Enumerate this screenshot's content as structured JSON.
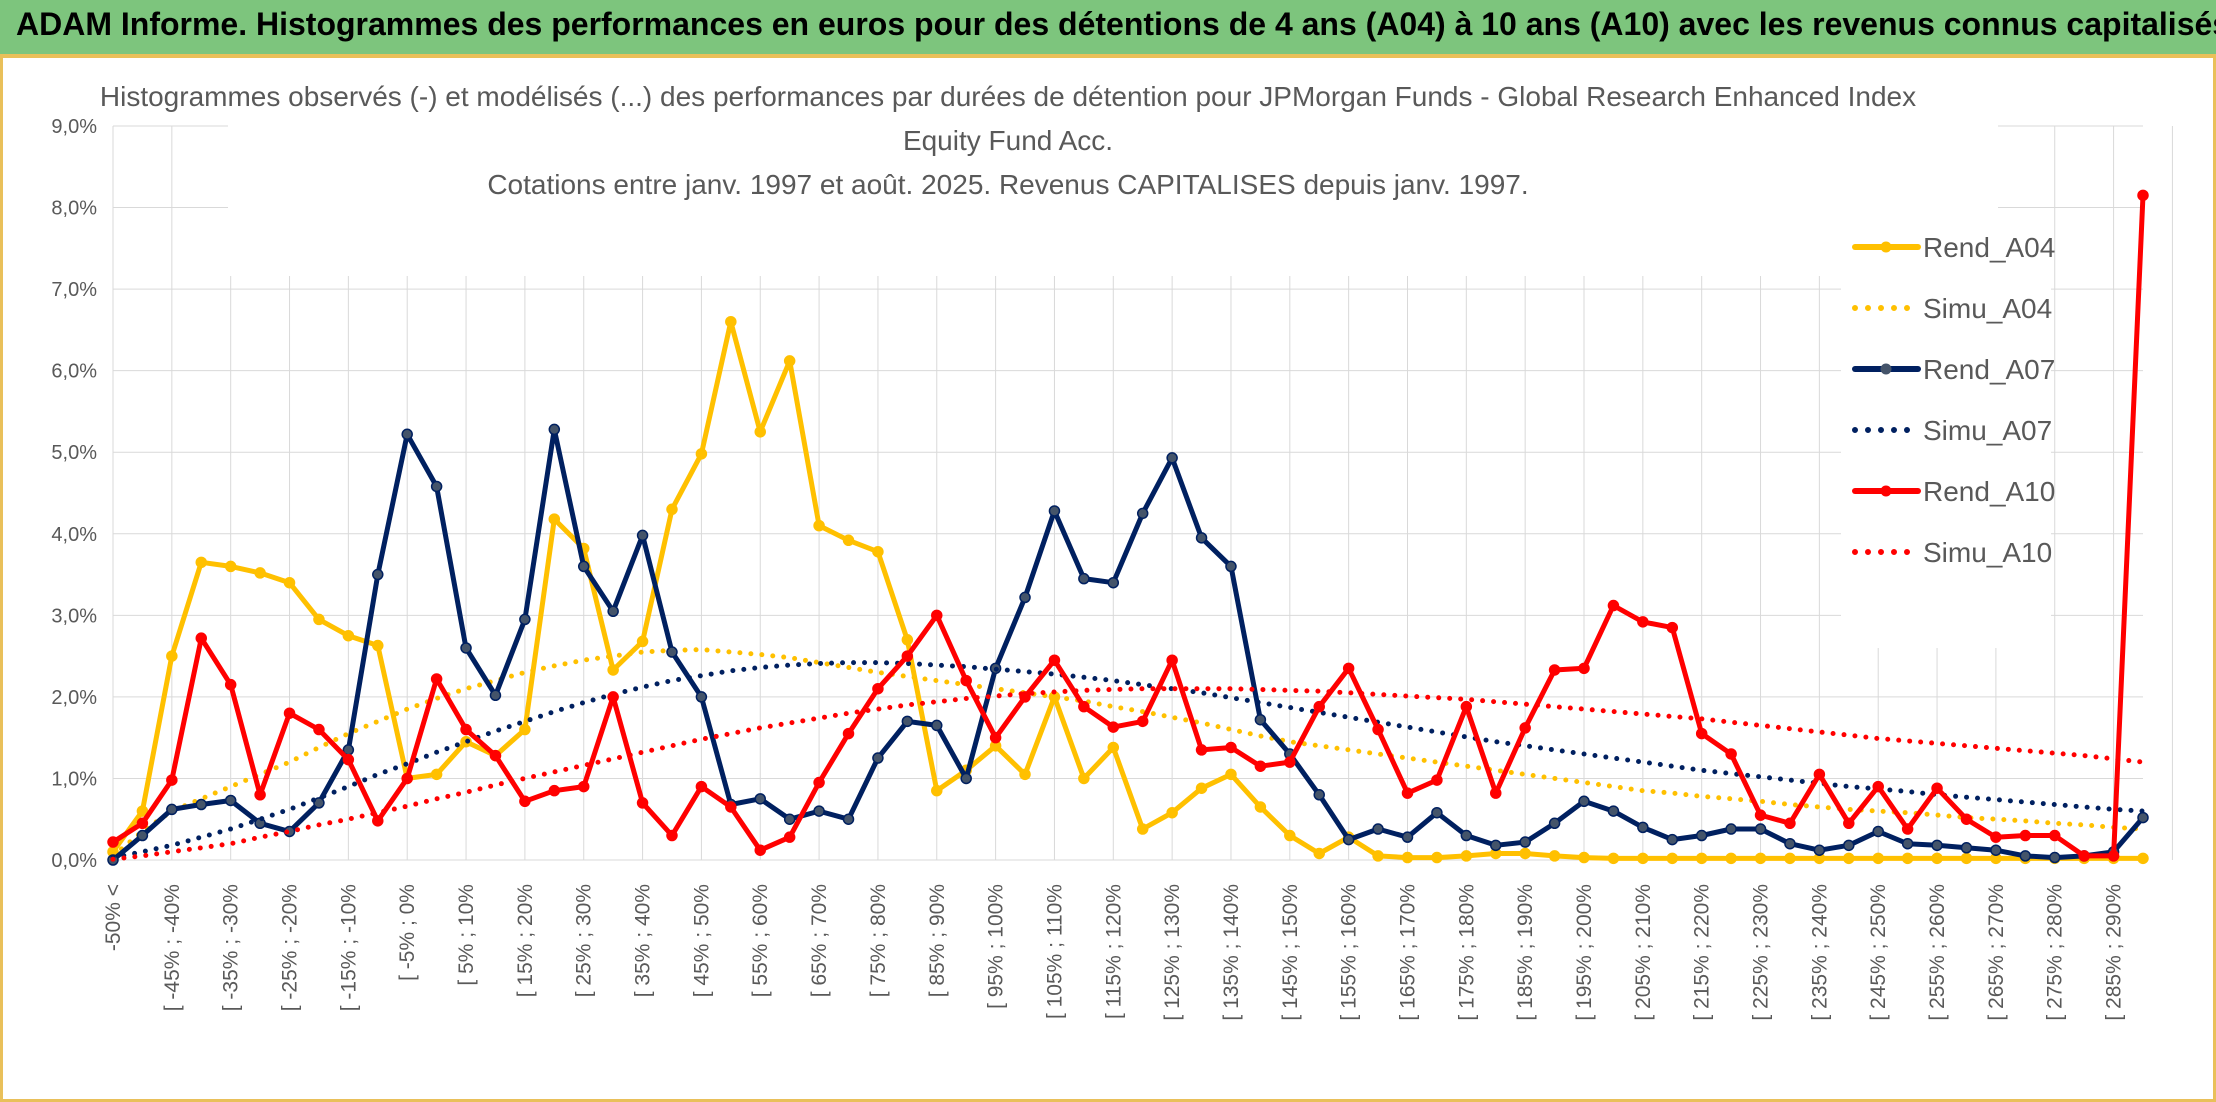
{
  "banner": {
    "title": "ADAM Informe. Histogrammes des performances en euros pour des détentions de 4 ans (A04) à 10 ans (A10) avec les revenus connus capitalisés"
  },
  "colors": {
    "banner_bg": "#7dc57d",
    "frame_border": "#e9c05a",
    "grid": "#d9d9d9",
    "text": "#595959"
  },
  "chart_data": {
    "type": "line",
    "title": [
      "Histogrammes observés (-) et modélisés (...) des performances par durées de détention pour JPMorgan Funds - Global Research Enhanced Index",
      "Equity Fund Acc.",
      "Cotations entre janv. 1997 et août. 2025. Revenus CAPITALISES depuis janv. 1997."
    ],
    "ylim": [
      0,
      9
    ],
    "y_ticks": [
      "0,0%",
      "1,0%",
      "2,0%",
      "3,0%",
      "4,0%",
      "5,0%",
      "6,0%",
      "7,0%",
      "8,0%",
      "9,0%"
    ],
    "grid": true,
    "legend_position": "right",
    "x_labels": [
      "-50% <",
      "[ -45% ; -40%",
      "[ -35% ; -30%",
      "[ -25% ; -20%",
      "[ -15% ; -10%",
      "[ -5% ; 0%",
      "[ 5% ; 10%",
      "[ 15% ; 20%",
      "[ 25% ; 30%",
      "[ 35% ; 40%",
      "[ 45% ; 50%",
      "[ 55% ; 60%",
      "[ 65% ; 70%",
      "[ 75% ; 80%",
      "[ 85% ; 90%",
      "[ 95% ; 100%",
      "[ 105% ; 110%",
      "[ 115% ; 120%",
      "[ 125% ; 130%",
      "[ 135% ; 140%",
      "[ 145% ; 150%",
      "[ 155% ; 160%",
      "[ 165% ; 170%",
      "[ 175% ; 180%",
      "[ 185% ; 190%",
      "[ 195% ; 200%",
      "[ 205% ; 210%",
      "[ 215% ; 220%",
      "[ 225% ; 230%",
      "[ 235% ; 240%",
      "[ 245% ; 250%",
      "[ 255% ; 260%",
      "[ 265% ; 270%",
      "[ 275% ; 280%",
      "[ 285% ; 290%"
    ],
    "n_categories": 70,
    "series": [
      {
        "name": "Rend_A04",
        "color": "#ffc000",
        "style": "solid",
        "markers": true,
        "values": [
          0.1,
          0.6,
          2.5,
          3.65,
          3.6,
          3.52,
          3.4,
          2.95,
          2.75,
          2.63,
          1.0,
          1.05,
          1.45,
          1.28,
          1.6,
          4.18,
          3.82,
          2.33,
          2.68,
          4.3,
          4.98,
          6.6,
          5.25,
          6.12,
          4.1,
          3.92,
          3.78,
          2.7,
          0.85,
          1.1,
          1.4,
          1.05,
          2.0,
          1.0,
          1.38,
          0.38,
          0.58,
          0.88,
          1.05,
          0.65,
          0.3,
          0.08,
          0.28,
          0.05,
          0.03,
          0.03,
          0.05,
          0.08,
          0.08,
          0.05,
          0.03,
          0.02,
          0.02,
          0.02,
          0.02,
          0.02,
          0.02,
          0.02,
          0.02,
          0.02,
          0.02,
          0.02,
          0.02,
          0.02,
          0.02,
          0.02,
          0.02,
          0.02,
          0.02,
          0.02
        ]
      },
      {
        "name": "Simu_A04",
        "color": "#ffc000",
        "style": "dotted",
        "markers": false,
        "values": [
          0.05,
          0.35,
          0.6,
          0.75,
          0.9,
          1.05,
          1.2,
          1.38,
          1.55,
          1.7,
          1.85,
          1.98,
          2.1,
          2.2,
          2.3,
          2.38,
          2.45,
          2.5,
          2.55,
          2.57,
          2.58,
          2.55,
          2.52,
          2.48,
          2.42,
          2.36,
          2.3,
          2.25,
          2.2,
          2.15,
          2.1,
          2.05,
          2.0,
          1.95,
          1.88,
          1.82,
          1.75,
          1.68,
          1.6,
          1.52,
          1.45,
          1.4,
          1.35,
          1.3,
          1.25,
          1.2,
          1.15,
          1.1,
          1.05,
          1.0,
          0.95,
          0.9,
          0.85,
          0.82,
          0.78,
          0.75,
          0.72,
          0.68,
          0.65,
          0.62,
          0.6,
          0.58,
          0.55,
          0.52,
          0.5,
          0.48,
          0.45,
          0.43,
          0.4,
          0.38
        ]
      },
      {
        "name": "Rend_A07",
        "color": "#002060",
        "style": "solid",
        "markers": true,
        "values": [
          0.0,
          0.3,
          0.62,
          0.68,
          0.73,
          0.45,
          0.35,
          0.7,
          1.35,
          3.5,
          5.22,
          4.58,
          2.6,
          2.02,
          2.95,
          5.28,
          3.6,
          3.05,
          3.98,
          2.55,
          2.0,
          0.68,
          0.75,
          0.5,
          0.6,
          0.5,
          1.25,
          1.7,
          1.65,
          1.0,
          2.35,
          3.22,
          4.28,
          3.45,
          3.4,
          4.25,
          4.93,
          3.95,
          3.6,
          1.72,
          1.3,
          0.8,
          0.25,
          0.38,
          0.28,
          0.58,
          0.3,
          0.18,
          0.22,
          0.45,
          0.72,
          0.6,
          0.4,
          0.25,
          0.3,
          0.38,
          0.38,
          0.2,
          0.12,
          0.18,
          0.35,
          0.2,
          0.18,
          0.15,
          0.12,
          0.05,
          0.03,
          0.05,
          0.1,
          0.52
        ]
      },
      {
        "name": "Simu_A07",
        "color": "#002060",
        "style": "dotted",
        "markers": false,
        "values": [
          0.03,
          0.1,
          0.18,
          0.28,
          0.38,
          0.5,
          0.62,
          0.76,
          0.9,
          1.05,
          1.18,
          1.32,
          1.45,
          1.58,
          1.7,
          1.82,
          1.93,
          2.03,
          2.12,
          2.2,
          2.26,
          2.32,
          2.36,
          2.39,
          2.41,
          2.42,
          2.42,
          2.41,
          2.39,
          2.37,
          2.34,
          2.31,
          2.28,
          2.24,
          2.2,
          2.15,
          2.1,
          2.05,
          1.99,
          1.93,
          1.87,
          1.81,
          1.75,
          1.69,
          1.63,
          1.57,
          1.51,
          1.45,
          1.4,
          1.35,
          1.3,
          1.25,
          1.2,
          1.15,
          1.1,
          1.06,
          1.02,
          0.98,
          0.94,
          0.9,
          0.87,
          0.84,
          0.8,
          0.77,
          0.74,
          0.71,
          0.68,
          0.65,
          0.62,
          0.6
        ]
      },
      {
        "name": "Rend_A10",
        "color": "#ff0000",
        "style": "solid",
        "markers": true,
        "values": [
          0.22,
          0.45,
          0.98,
          2.72,
          2.15,
          0.8,
          1.8,
          1.6,
          1.23,
          0.48,
          1.0,
          2.22,
          1.6,
          1.28,
          0.72,
          0.85,
          0.9,
          2.0,
          0.7,
          0.3,
          0.9,
          0.65,
          0.12,
          0.28,
          0.95,
          1.55,
          2.1,
          2.5,
          3.0,
          2.2,
          1.5,
          2.0,
          2.45,
          1.88,
          1.63,
          1.7,
          2.45,
          1.35,
          1.38,
          1.15,
          1.2,
          1.88,
          2.35,
          1.6,
          0.82,
          0.98,
          1.88,
          0.82,
          1.62,
          2.33,
          2.35,
          3.12,
          2.92,
          2.85,
          1.55,
          1.3,
          0.55,
          0.45,
          1.05,
          0.45,
          0.9,
          0.38,
          0.88,
          0.5,
          0.28,
          0.3,
          0.3,
          0.05,
          0.05,
          8.15
        ]
      },
      {
        "name": "Simu_A10",
        "color": "#ff0000",
        "style": "dotted",
        "markers": false,
        "values": [
          0.01,
          0.05,
          0.1,
          0.15,
          0.2,
          0.28,
          0.35,
          0.43,
          0.5,
          0.58,
          0.66,
          0.75,
          0.83,
          0.92,
          1.0,
          1.08,
          1.16,
          1.24,
          1.32,
          1.4,
          1.48,
          1.55,
          1.62,
          1.68,
          1.74,
          1.8,
          1.85,
          1.9,
          1.94,
          1.98,
          2.01,
          2.04,
          2.06,
          2.08,
          2.09,
          2.1,
          2.1,
          2.1,
          2.1,
          2.09,
          2.08,
          2.07,
          2.05,
          2.03,
          2.01,
          1.99,
          1.97,
          1.94,
          1.91,
          1.88,
          1.85,
          1.82,
          1.79,
          1.76,
          1.73,
          1.69,
          1.65,
          1.61,
          1.57,
          1.53,
          1.49,
          1.46,
          1.43,
          1.4,
          1.37,
          1.34,
          1.31,
          1.28,
          1.24,
          1.2
        ]
      }
    ]
  }
}
